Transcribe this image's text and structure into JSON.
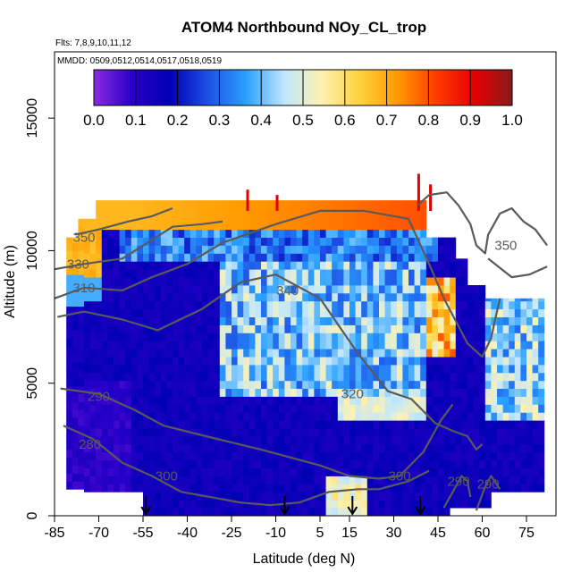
{
  "chart_data": {
    "type": "heatmap",
    "title": "ATOM4 Northbound NOy_CL_trop",
    "subtitle_flights": "Flts: 7,8,9,10,11,12",
    "subtitle_dates": "MMDD: 0509,0512,0514,0517,0518,0519",
    "xlabel": "Latitude (deg N)",
    "ylabel": "Altitude (m)",
    "xlim": [
      -85,
      85
    ],
    "ylim": [
      0,
      17500
    ],
    "x_ticks": [
      -85,
      -70,
      -55,
      -40,
      -25,
      -10,
      5,
      15,
      30,
      45,
      60,
      75
    ],
    "y_ticks": [
      0,
      5000,
      10000,
      15000
    ],
    "colorbar": {
      "min": 0.0,
      "max": 1.0,
      "tick_labels": [
        "0.0",
        "0.1",
        "0.2",
        "0.3",
        "0.4",
        "0.5",
        "0.6",
        "0.7",
        "0.8",
        "0.9",
        "1.0"
      ],
      "colors": [
        "#8a2be2",
        "#2a00c8",
        "#0000b4",
        "#1e50e6",
        "#2aa0ff",
        "#bfe6ff",
        "#fff2b0",
        "#ffd23c",
        "#ff9a00",
        "#ff3c00",
        "#e60000",
        "#8b1a1a"
      ]
    },
    "contour_labels": [
      "350",
      "330",
      "310",
      "340",
      "350",
      "320",
      "290",
      "280",
      "300",
      "300",
      "290",
      "290"
    ],
    "flight_marker_latitudes": [
      -54,
      -7,
      16,
      39
    ]
  }
}
